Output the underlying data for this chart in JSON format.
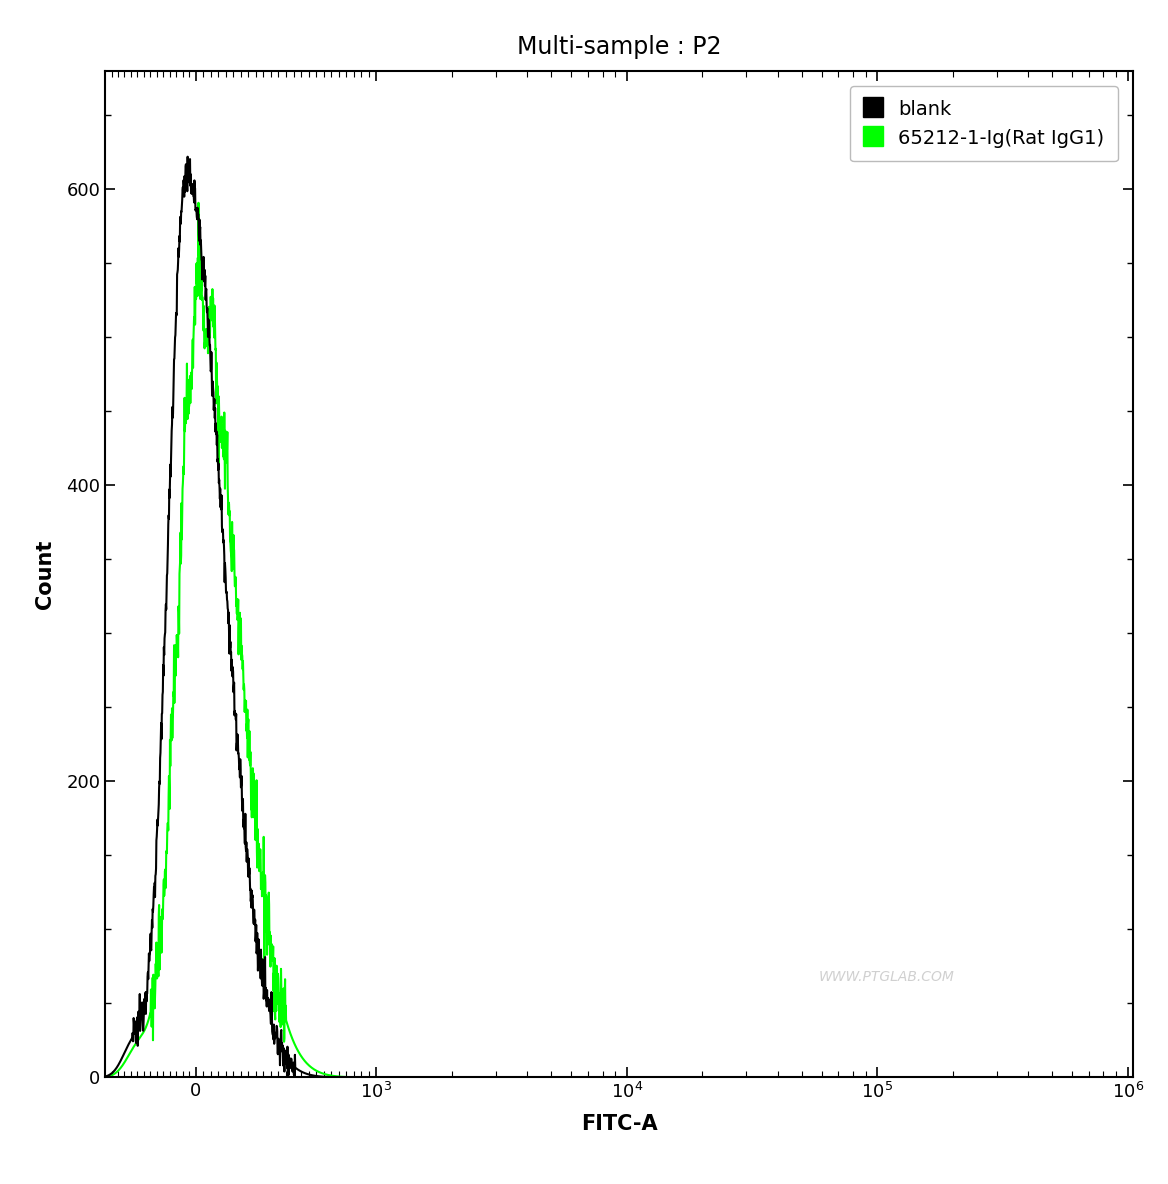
{
  "title": "Multi-sample : P2",
  "xlabel": "FITC-A",
  "ylabel": "Count",
  "background_color": "#ffffff",
  "plot_background_color": "#ffffff",
  "ylim": [
    0,
    680
  ],
  "yticks": [
    0,
    200,
    400,
    600
  ],
  "watermark": "WWW.PTGLAB.COM",
  "legend": [
    {
      "label": "blank",
      "color": "#000000"
    },
    {
      "label": "65212-1-Ig(Rat IgG1)",
      "color": "#00ff00"
    }
  ]
}
